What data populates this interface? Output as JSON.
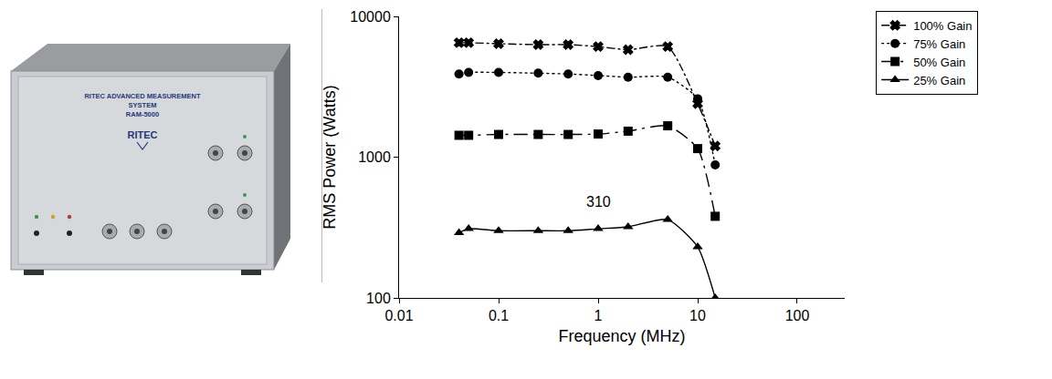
{
  "chart_data": {
    "type": "line",
    "x": [
      0.04,
      0.05,
      0.1,
      0.25,
      0.5,
      1,
      2,
      5,
      10,
      15
    ],
    "series": [
      {
        "name": "100% Gain",
        "color": "#000000",
        "marker": "x",
        "line_style": "dashdot",
        "values": [
          6500,
          6500,
          6400,
          6300,
          6300,
          6100,
          5800,
          6100,
          2400,
          1200
        ]
      },
      {
        "name": "75% Gain",
        "color": "#000000",
        "marker": "circle",
        "line_style": "dot",
        "values": [
          3900,
          4000,
          4000,
          3950,
          3900,
          3800,
          3700,
          3700,
          2600,
          880
        ]
      },
      {
        "name": "50% Gain",
        "color": "#000000",
        "marker": "square",
        "line_style": "longdashdot",
        "values": [
          1430,
          1430,
          1450,
          1450,
          1450,
          1460,
          1530,
          1670,
          1150,
          380
        ]
      },
      {
        "name": "25% Gain",
        "color": "#000000",
        "marker": "triangle-up",
        "line_style": "solid",
        "values": [
          290,
          310,
          300,
          300,
          300,
          310,
          320,
          360,
          230,
          100
        ]
      }
    ],
    "xlabel": "Frequency (MHz)",
    "ylabel": "RMS Power (Watts)",
    "xlim": [
      0.01,
      300
    ],
    "ylim": [
      100,
      10000
    ],
    "xticks": [
      0.01,
      0.1,
      1,
      10,
      100
    ],
    "yticks": [
      100,
      1000,
      10000
    ],
    "log": true,
    "grid": false,
    "legend": "top right",
    "annotations": [
      {
        "text": "310",
        "x": 1,
        "y": 310
      }
    ]
  },
  "photo": {
    "panel_text": [
      "RITEC ADVANCED MEASUREMENT",
      "SYSTEM",
      "RAM-5000"
    ],
    "logo": "RITEC"
  }
}
